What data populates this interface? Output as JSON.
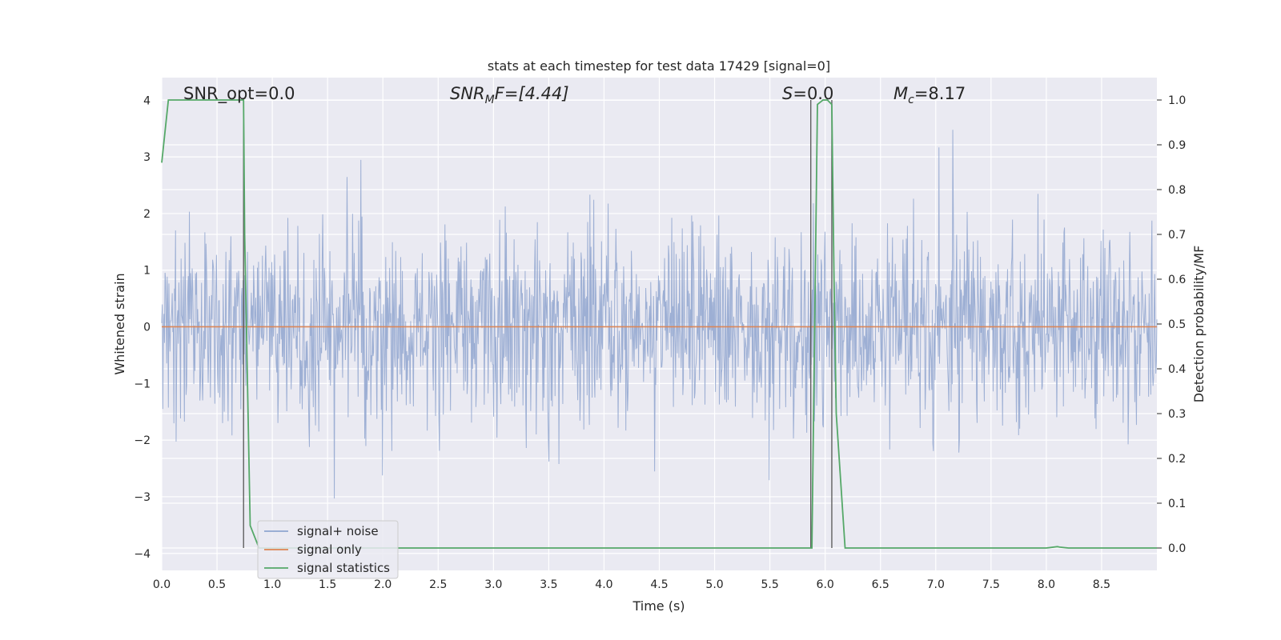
{
  "chart_data": {
    "type": "line",
    "title": "stats at each timestep for test data 17429 [signal=0]",
    "xlabel": "Time (s)",
    "ylabel": "Whitened strain",
    "y2label": "Detection probability/MF",
    "xlim": [
      0,
      9.0
    ],
    "ylim": [
      -4.3,
      4.4
    ],
    "y2lim": [
      -0.05,
      1.05
    ],
    "xticks": [
      "0.0",
      "0.5",
      "1.0",
      "1.5",
      "2.0",
      "2.5",
      "3.0",
      "3.5",
      "4.0",
      "4.5",
      "5.0",
      "5.5",
      "6.0",
      "6.5",
      "7.0",
      "7.5",
      "8.0",
      "8.5"
    ],
    "yticks": [
      "4",
      "3",
      "2",
      "1",
      "0",
      "−1",
      "−2",
      "−3",
      "−4"
    ],
    "y2ticks": [
      "1.0",
      "0.9",
      "0.8",
      "0.7",
      "0.6",
      "0.5",
      "0.4",
      "0.3",
      "0.2",
      "0.1",
      "0.0"
    ],
    "grid": true,
    "legend_position": "lower-left",
    "annotations": {
      "snr_opt": "SNR_opt=0.0",
      "snr_mf_main": "SNR",
      "snr_mf_sub": "M",
      "snr_mf_rest": "F=[4.44]",
      "s_main": "S",
      "s_rest": "=0.0",
      "mc_main": "M",
      "mc_sub": "c",
      "mc_rest": "=8.17"
    },
    "vlines": [
      0.74,
      5.87,
      6.06
    ],
    "series": [
      {
        "name": "signal+ noise",
        "color": "#8fa5cf",
        "description_values": "whitened noise, roughly -1.7 to 1.7 band with spikes to about ±4",
        "seed": 17429,
        "n_points": 1800,
        "noise_std": 0.85
      },
      {
        "name": "signal only",
        "color": "#dd8452",
        "values_constant": 0.0
      },
      {
        "name": "signal statistics",
        "color": "#55a868",
        "axis": "right",
        "x": [
          0.0,
          0.06,
          0.1,
          0.2,
          0.6,
          0.74,
          0.75,
          0.8,
          0.88,
          1.0,
          5.85,
          5.88,
          5.93,
          5.98,
          6.02,
          6.06,
          6.08,
          6.1,
          6.18,
          6.3,
          8.0,
          8.1,
          8.12,
          8.2,
          9.0
        ],
        "y": [
          0.86,
          1.0,
          1.0,
          1.0,
          1.0,
          1.0,
          0.7,
          0.05,
          0.0,
          0.0,
          0.0,
          0.0,
          0.99,
          1.0,
          1.0,
          0.99,
          0.6,
          0.3,
          0.0,
          0.0,
          0.0,
          0.003,
          0.002,
          0.0,
          0.0
        ]
      }
    ]
  }
}
